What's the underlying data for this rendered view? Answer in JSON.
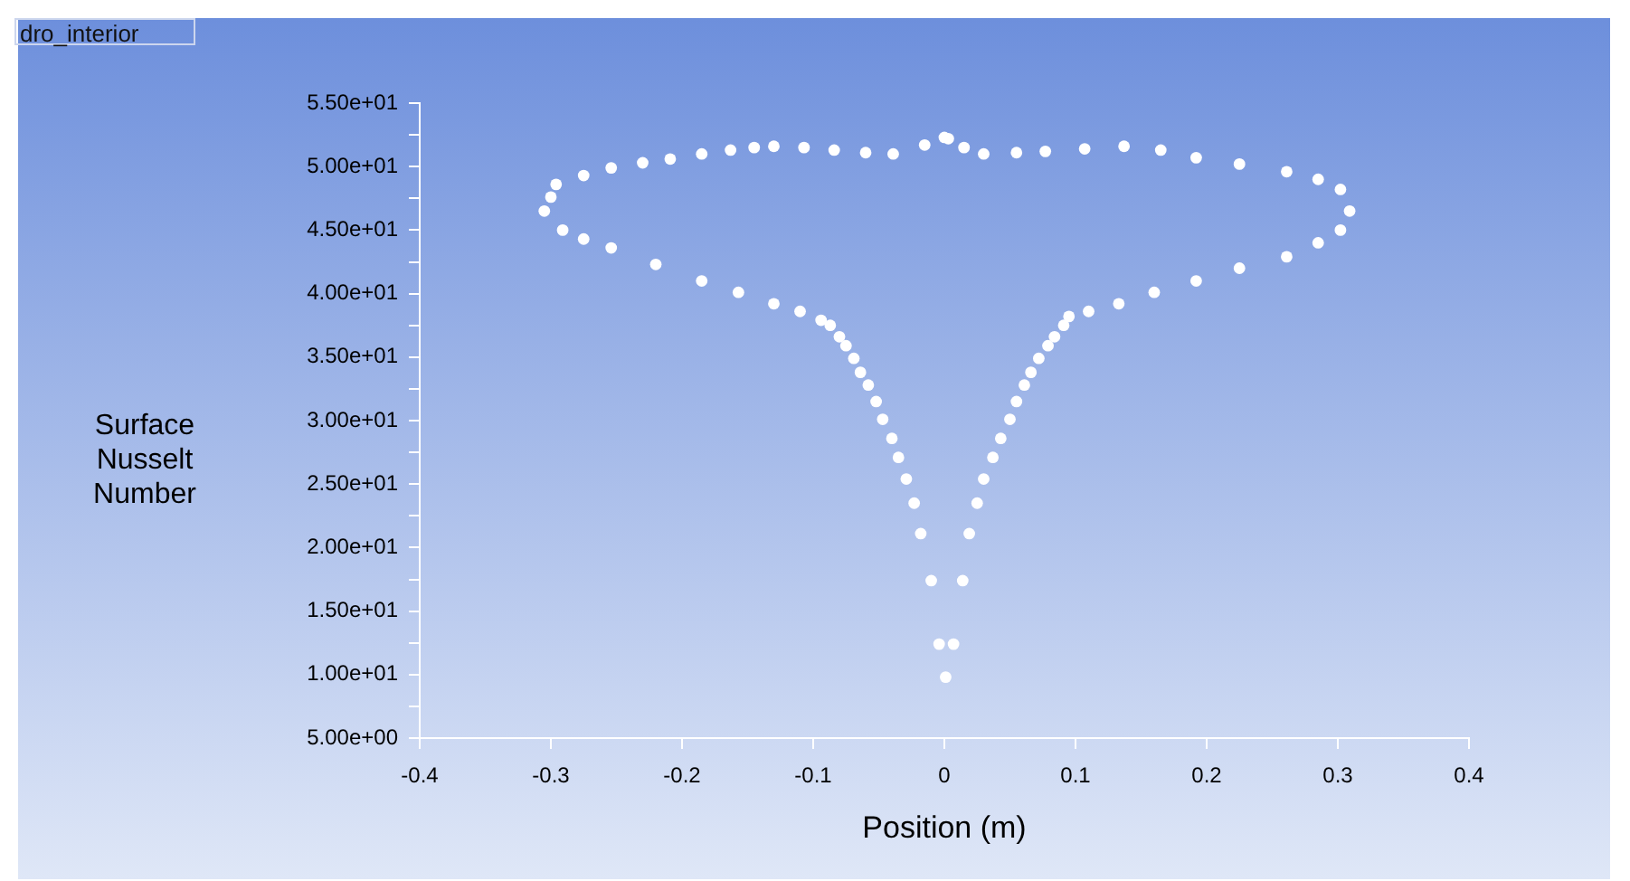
{
  "chart_data": {
    "type": "scatter",
    "xlabel": "Position (m)",
    "ylabel": "Surface Nusselt Number",
    "legend": "top left",
    "marker": "circle",
    "grid": false,
    "xlim": [
      -0.4,
      0.4
    ],
    "xticks": [
      -0.4,
      -0.3,
      -0.2,
      -0.1,
      0,
      0.1,
      0.2,
      0.3,
      0.4
    ],
    "ylim": [
      5,
      55
    ],
    "yticks": [
      {
        "value": 5,
        "label": "5.00e+00"
      },
      {
        "value": 7.5,
        "label": null
      },
      {
        "value": 10,
        "label": "1.00e+01"
      },
      {
        "value": 12.5,
        "label": null
      },
      {
        "value": 15,
        "label": "1.50e+01"
      },
      {
        "value": 17.5,
        "label": null
      },
      {
        "value": 20,
        "label": "2.00e+01"
      },
      {
        "value": 22.5,
        "label": null
      },
      {
        "value": 25,
        "label": "2.50e+01"
      },
      {
        "value": 27.5,
        "label": null
      },
      {
        "value": 30,
        "label": "3.00e+01"
      },
      {
        "value": 32.5,
        "label": null
      },
      {
        "value": 35,
        "label": "3.50e+01"
      },
      {
        "value": 37.5,
        "label": null
      },
      {
        "value": 40,
        "label": "4.00e+01"
      },
      {
        "value": 42.5,
        "label": null
      },
      {
        "value": 45,
        "label": "4.50e+01"
      },
      {
        "value": 47.5,
        "label": null
      },
      {
        "value": 50,
        "label": "5.00e+01"
      },
      {
        "value": 52.5,
        "label": null
      },
      {
        "value": 55,
        "label": "5.50e+01"
      }
    ],
    "series": [
      {
        "name": "dro_interior",
        "color": "#ffffff",
        "x": [
          -0.305,
          -0.3,
          -0.296,
          -0.275,
          -0.254,
          -0.23,
          -0.209,
          -0.185,
          -0.163,
          -0.145,
          -0.13,
          -0.107,
          -0.084,
          -0.06,
          -0.039,
          -0.015,
          0.0,
          0.003,
          0.015,
          0.03,
          0.055,
          0.077,
          0.107,
          0.137,
          0.165,
          0.192,
          0.225,
          0.261,
          0.285,
          0.302,
          0.309,
          0.302,
          0.285,
          0.261,
          0.225,
          0.192,
          0.16,
          0.133,
          0.11,
          0.095,
          0.091,
          0.084,
          0.079,
          0.072,
          0.066,
          0.061,
          0.055,
          0.05,
          0.043,
          0.037,
          0.03,
          0.025,
          0.019,
          0.014,
          0.007,
          0.001,
          -0.004,
          -0.01,
          -0.018,
          -0.023,
          -0.029,
          -0.035,
          -0.04,
          -0.047,
          -0.052,
          -0.058,
          -0.064,
          -0.069,
          -0.075,
          -0.08,
          -0.087,
          -0.094,
          -0.11,
          -0.13,
          -0.157,
          -0.185,
          -0.22,
          -0.254,
          -0.275,
          -0.291
        ],
        "values": [
          46.5,
          47.6,
          48.6,
          49.3,
          49.9,
          50.3,
          50.6,
          51.0,
          51.3,
          51.5,
          51.6,
          51.5,
          51.3,
          51.1,
          51.0,
          51.7,
          52.3,
          52.2,
          51.5,
          51.0,
          51.1,
          51.2,
          51.4,
          51.6,
          51.3,
          50.7,
          50.2,
          49.6,
          49.0,
          48.2,
          46.5,
          45.0,
          44.0,
          42.9,
          42.0,
          41.0,
          40.1,
          39.2,
          38.6,
          38.2,
          37.5,
          36.6,
          35.9,
          34.9,
          33.8,
          32.8,
          31.5,
          30.1,
          28.6,
          27.1,
          25.4,
          23.5,
          21.1,
          17.4,
          12.4,
          9.8,
          12.4,
          17.4,
          21.1,
          23.5,
          25.4,
          27.1,
          28.6,
          30.1,
          31.5,
          32.8,
          33.8,
          34.9,
          35.9,
          36.6,
          37.5,
          37.9,
          38.6,
          39.2,
          40.1,
          41.0,
          42.3,
          43.6,
          44.3,
          45.0
        ]
      }
    ]
  }
}
